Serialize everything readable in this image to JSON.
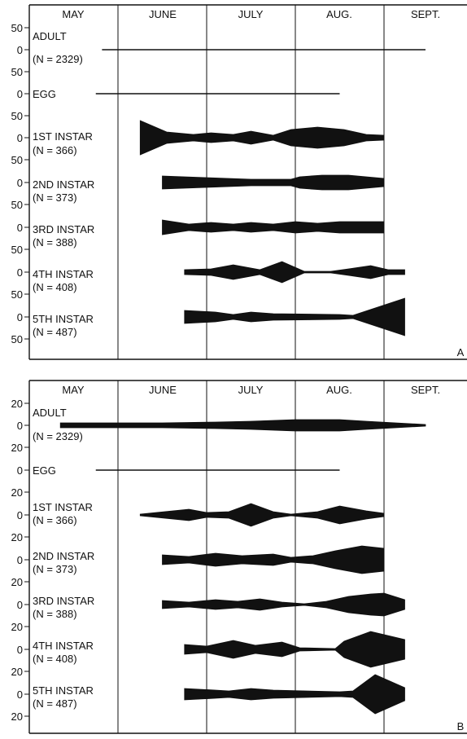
{
  "chart_data": [
    {
      "type": "area",
      "panel_letter": "A",
      "months": [
        "MAY",
        "JUNE",
        "JULY",
        "AUG.",
        "SEPT."
      ],
      "tick_value": 50,
      "rows": [
        {
          "name": "ADULT",
          "n_label": "(N = 2329)",
          "style": "line",
          "widths": []
        },
        {
          "name": "EGG",
          "n_label": "",
          "style": "line",
          "widths": []
        },
        {
          "name": "1ST INSTAR",
          "n_label": "(N = 366)",
          "style": "shape",
          "widths": [
            [
              1.25,
              42
            ],
            [
              1.55,
              14
            ],
            [
              1.85,
              8
            ],
            [
              2.05,
              12
            ],
            [
              2.3,
              8
            ],
            [
              2.5,
              16
            ],
            [
              2.75,
              6
            ],
            [
              2.95,
              20
            ],
            [
              3.25,
              26
            ],
            [
              3.55,
              20
            ],
            [
              3.8,
              8
            ],
            [
              4.0,
              6
            ]
          ]
        },
        {
          "name": "2ND INSTAR",
          "n_label": "(N = 373)",
          "style": "shape",
          "widths": [
            [
              1.5,
              16
            ],
            [
              2.0,
              12
            ],
            [
              2.5,
              8
            ],
            [
              2.95,
              8
            ],
            [
              3.05,
              14
            ],
            [
              3.3,
              18
            ],
            [
              3.6,
              18
            ],
            [
              4.0,
              10
            ]
          ]
        },
        {
          "name": "3RD INSTAR",
          "n_label": "(N = 388)",
          "style": "shape",
          "widths": [
            [
              1.5,
              18
            ],
            [
              1.8,
              8
            ],
            [
              2.05,
              12
            ],
            [
              2.3,
              8
            ],
            [
              2.5,
              12
            ],
            [
              2.75,
              8
            ],
            [
              3.0,
              14
            ],
            [
              3.25,
              10
            ],
            [
              3.5,
              14
            ],
            [
              4.0,
              14
            ]
          ]
        },
        {
          "name": "4TH INSTAR",
          "n_label": "(N = 408)",
          "style": "shape",
          "widths": [
            [
              1.75,
              6
            ],
            [
              2.05,
              8
            ],
            [
              2.3,
              18
            ],
            [
              2.6,
              6
            ],
            [
              2.85,
              26
            ],
            [
              3.1,
              2
            ],
            [
              3.4,
              2
            ],
            [
              3.6,
              8
            ],
            [
              3.85,
              16
            ],
            [
              4.05,
              6
            ],
            [
              4.25,
              6
            ]
          ]
        },
        {
          "name": "5TH INSTAR",
          "n_label": "(N = 487)",
          "style": "shape",
          "widths": [
            [
              1.75,
              16
            ],
            [
              2.1,
              12
            ],
            [
              2.3,
              6
            ],
            [
              2.5,
              12
            ],
            [
              2.75,
              8
            ],
            [
              3.5,
              6
            ],
            [
              3.65,
              4
            ],
            [
              4.25,
              46
            ]
          ]
        }
      ]
    },
    {
      "type": "area",
      "panel_letter": "B",
      "months": [
        "MAY",
        "JUNE",
        "JULY",
        "AUG.",
        "SEPT."
      ],
      "tick_value": 20,
      "rows": [
        {
          "name": "ADULT",
          "n_label": "(N = 2329)",
          "style": "shape",
          "widths": [
            [
              0.35,
              6
            ],
            [
              1.5,
              6
            ],
            [
              2.1,
              8
            ],
            [
              2.5,
              10
            ],
            [
              3.0,
              14
            ],
            [
              3.5,
              14
            ],
            [
              3.8,
              10
            ],
            [
              4.5,
              2
            ]
          ]
        },
        {
          "name": "EGG",
          "n_label": "",
          "style": "line",
          "widths": []
        },
        {
          "name": "1ST INSTAR",
          "n_label": "(N = 366)",
          "style": "shape",
          "widths": [
            [
              1.25,
              2
            ],
            [
              1.8,
              14
            ],
            [
              2.0,
              6
            ],
            [
              2.25,
              8
            ],
            [
              2.5,
              28
            ],
            [
              2.75,
              8
            ],
            [
              2.95,
              2
            ],
            [
              3.25,
              8
            ],
            [
              3.5,
              22
            ],
            [
              3.8,
              10
            ],
            [
              4.0,
              4
            ]
          ]
        },
        {
          "name": "2ND INSTAR",
          "n_label": "(N = 373)",
          "style": "shape",
          "widths": [
            [
              1.5,
              12
            ],
            [
              1.8,
              8
            ],
            [
              2.1,
              16
            ],
            [
              2.4,
              10
            ],
            [
              2.75,
              14
            ],
            [
              2.95,
              6
            ],
            [
              3.2,
              10
            ],
            [
              3.45,
              22
            ],
            [
              3.75,
              34
            ],
            [
              4.0,
              28
            ]
          ]
        },
        {
          "name": "3RD INSTAR",
          "n_label": "(N = 388)",
          "style": "shape",
          "widths": [
            [
              1.5,
              10
            ],
            [
              1.8,
              6
            ],
            [
              2.1,
              12
            ],
            [
              2.35,
              8
            ],
            [
              2.6,
              14
            ],
            [
              2.85,
              6
            ],
            [
              3.1,
              2
            ],
            [
              3.35,
              8
            ],
            [
              3.6,
              20
            ],
            [
              3.85,
              26
            ],
            [
              4.0,
              28
            ],
            [
              4.25,
              12
            ]
          ]
        },
        {
          "name": "4TH INSTAR",
          "n_label": "(N = 408)",
          "style": "shape",
          "widths": [
            [
              1.75,
              12
            ],
            [
              2.0,
              8
            ],
            [
              2.3,
              22
            ],
            [
              2.55,
              10
            ],
            [
              2.85,
              18
            ],
            [
              3.05,
              4
            ],
            [
              3.45,
              2
            ],
            [
              3.55,
              20
            ],
            [
              3.85,
              44
            ],
            [
              4.25,
              24
            ]
          ]
        },
        {
          "name": "5TH INSTAR",
          "n_label": "(N = 487)",
          "style": "shape",
          "widths": [
            [
              1.75,
              14
            ],
            [
              2.1,
              10
            ],
            [
              2.25,
              8
            ],
            [
              2.5,
              14
            ],
            [
              2.75,
              10
            ],
            [
              3.5,
              6
            ],
            [
              3.65,
              8
            ],
            [
              3.9,
              48
            ],
            [
              4.25,
              16
            ]
          ]
        }
      ]
    }
  ]
}
